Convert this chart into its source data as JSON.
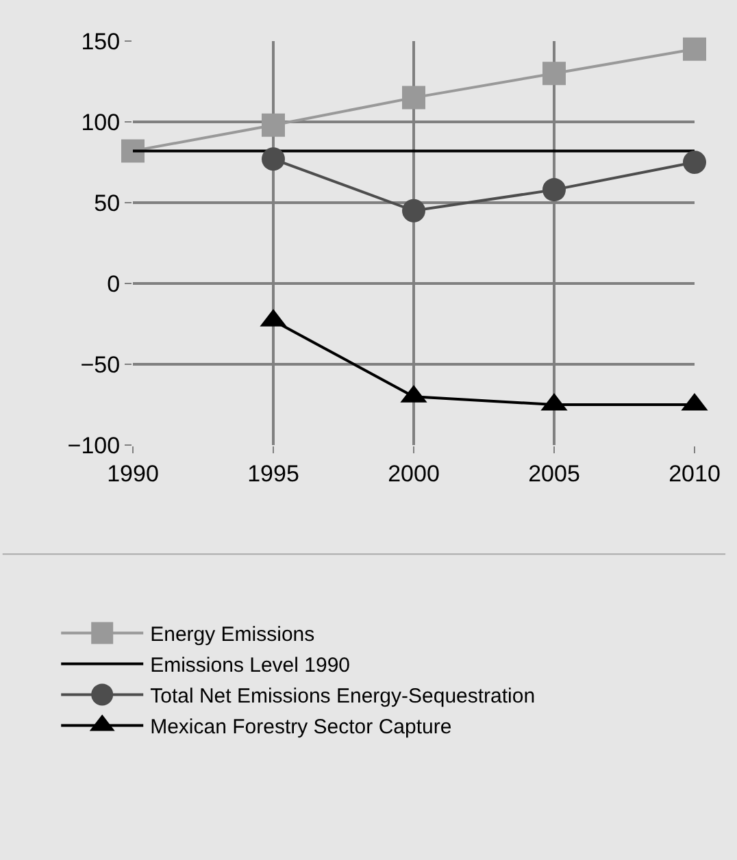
{
  "chart_data": {
    "type": "line",
    "x": [
      1990,
      1995,
      2000,
      2005,
      2010
    ],
    "series": [
      {
        "name": "Energy Emissions",
        "color": "#999999",
        "marker": "square",
        "values": [
          82,
          98,
          115,
          130,
          145
        ]
      },
      {
        "name": "Emissions Level 1990",
        "color": "#000000",
        "marker": "none",
        "values": [
          82,
          82,
          82,
          82,
          82
        ]
      },
      {
        "name": "Total Net Emissions Energy-Sequestration",
        "color": "#4d4d4d",
        "marker": "circle",
        "values": [
          null,
          77,
          45,
          58,
          75
        ]
      },
      {
        "name": "Mexican Forestry Sector Capture",
        "color": "#000000",
        "marker": "triangle",
        "values": [
          null,
          -23,
          -70,
          -75,
          -75
        ]
      }
    ],
    "xlim": [
      1990,
      2010
    ],
    "xticks": [
      1990,
      1995,
      2000,
      2005,
      2010
    ],
    "ylim": [
      -100,
      150
    ],
    "yticks": [
      {
        "value": -100,
        "label": "−100"
      },
      {
        "value": -50,
        "label": "−50"
      },
      0,
      50,
      100,
      150
    ],
    "grid": true,
    "legend": "bottom"
  }
}
